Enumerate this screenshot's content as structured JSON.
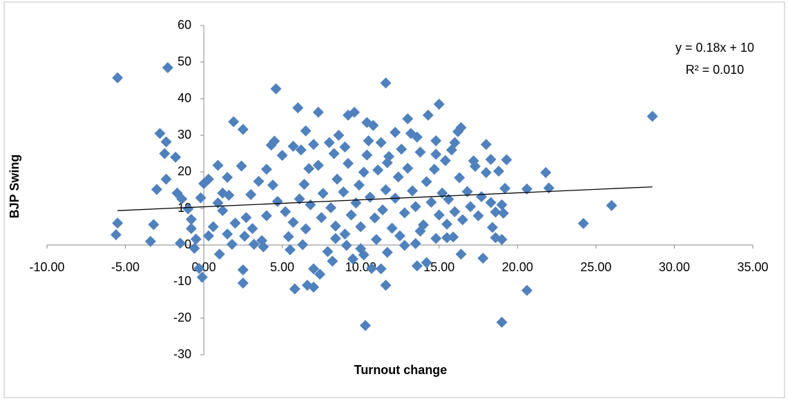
{
  "chart_data": {
    "type": "scatter",
    "x_label": "Turnout change",
    "y_label": "BJP Swing",
    "equation": "y = 0.18x + 10",
    "r_squared": "R² = 0.010",
    "color": "#4f81bd",
    "xlim": [
      -10,
      35
    ],
    "xticks": [
      {
        "value": -10,
        "label": "-10.00"
      },
      {
        "value": -5,
        "label": "-5.00"
      },
      {
        "value": 0,
        "label": "0.00"
      },
      {
        "value": 5,
        "label": "5.00"
      },
      {
        "value": 10,
        "label": "10.00"
      },
      {
        "value": 15,
        "label": "15.00"
      },
      {
        "value": 20,
        "label": "20.00"
      },
      {
        "value": 25,
        "label": "25.00"
      },
      {
        "value": 30,
        "label": "30.00"
      },
      {
        "value": 35,
        "label": "35.00"
      }
    ],
    "ylim": [
      -30,
      60
    ],
    "yticks": [
      -30,
      -20,
      -10,
      0,
      10,
      20,
      30,
      40,
      50,
      60
    ],
    "trendline": {
      "x": [
        -5.5,
        28.6
      ],
      "y": [
        9.4,
        15.9
      ]
    },
    "x": [
      -5.5,
      -2.3,
      4.6,
      11.6,
      15,
      28.6,
      26,
      24.2,
      21.8,
      22,
      20.6,
      20.6,
      19,
      10.3,
      -5.5,
      -5.6,
      -3.4,
      -3.2,
      -3,
      -2.8,
      -2.4,
      -2.5,
      -2.4,
      -1.8,
      -1.7,
      -1.4,
      -1,
      -0.8,
      -0.6,
      -0.3,
      -0.1,
      0.3,
      0.6,
      1,
      0.9,
      1.5,
      1.9,
      2.5,
      2.4,
      2.5,
      2.5,
      3.2,
      3.5,
      4,
      4.3,
      4.5,
      5,
      5.5,
      5.7,
      6,
      6.2,
      6.5,
      5.8,
      6.6,
      7,
      7.3,
      7,
      7.4,
      7,
      8,
      8.6,
      9.2,
      9.6,
      10.4,
      10.8,
      11.3,
      12.2,
      13,
      13.6,
      14.3,
      14.8,
      16.4,
      16.2,
      17.2,
      18,
      18.3,
      19.3,
      19.2,
      19,
      18.4,
      18.6,
      19,
      17.8,
      16.4,
      15.5,
      15.9,
      14.8,
      14.2,
      13.6,
      13.5,
      12.8,
      11.6,
      11.3,
      11.7,
      10.7,
      10.2,
      9.5,
      8.2,
      7.9,
      8.4,
      9.1,
      6.3,
      6.5,
      5.4,
      4,
      3.7,
      2.6,
      2,
      1.8,
      1.2,
      0.9,
      -0.5,
      -0.2,
      0,
      0.3,
      1.2,
      1.6,
      2.7,
      3.1,
      3,
      4.4,
      4.7,
      5.2,
      5.7,
      6.1,
      6.4,
      6.7,
      7.3,
      7.6,
      8.1,
      8.4,
      8.5,
      8.9,
      9.2,
      9.4,
      9.7,
      9.9,
      10.2,
      10.4,
      10.6,
      10.9,
      11.1,
      11.4,
      11.6,
      11.8,
      12,
      12.2,
      12.4,
      12.6,
      12.8,
      13,
      13.3,
      13.5,
      13.8,
      14,
      14.2,
      14.5,
      14.7,
      15,
      15.2,
      15.4,
      15.6,
      15.8,
      16,
      16.3,
      16.5,
      16.8,
      17,
      17.3,
      17.5,
      17.7,
      18,
      18.3,
      18.6,
      18.8,
      19.1,
      12.5,
      11,
      10,
      9,
      7.5,
      6.8,
      13.8,
      15.5,
      10.5,
      9,
      8.3,
      11.7,
      13.2,
      14.8,
      16,
      10,
      -1.5,
      -0.8,
      1.5,
      3.8
    ],
    "values": [
      45.7,
      48.5,
      42.7,
      44.3,
      38.5,
      35.2,
      10.8,
      5.9,
      19.8,
      15.6,
      15.3,
      -12.4,
      -21.1,
      -22,
      6,
      2.8,
      1,
      5.6,
      15.2,
      30.5,
      28.2,
      25,
      18,
      24,
      14.2,
      12.6,
      9.9,
      4.5,
      -0.9,
      -6.4,
      -8.8,
      2.5,
      5,
      -2.5,
      21.8,
      18.5,
      33.7,
      31.6,
      21.6,
      -6.8,
      -10.4,
      0.2,
      17.4,
      20.7,
      27.3,
      28.4,
      24.5,
      -1.3,
      27,
      37.5,
      26,
      31.2,
      -12,
      -11,
      -11.5,
      36.3,
      27.5,
      -8,
      -6.5,
      28,
      30,
      35.5,
      36.3,
      33.5,
      32.7,
      28,
      30.8,
      34.5,
      29.5,
      35.5,
      28.5,
      32.1,
      31,
      23,
      27.5,
      23.4,
      23.3,
      15.5,
      11,
      4.8,
      2,
      1.5,
      -3.6,
      -2.5,
      2,
      2.2,
      1.8,
      -4.8,
      -5.7,
      0.4,
      -0.1,
      -11,
      -6.5,
      -2,
      -6.4,
      -2.7,
      -3.8,
      -4.4,
      -1.8,
      1.8,
      -0.1,
      0.1,
      4.4,
      2.3,
      8,
      1.2,
      2.4,
      6,
      0.2,
      9.4,
      11.5,
      1.6,
      12.9,
      16.8,
      18,
      14.2,
      13.6,
      7.5,
      4.5,
      13.8,
      16.4,
      11.9,
      9.1,
      6.2,
      12.6,
      16.6,
      20.9,
      21.8,
      14.1,
      10.2,
      5.2,
      18,
      14.5,
      22.3,
      8.2,
      11.5,
      16.4,
      19.9,
      24.6,
      13.1,
      7.4,
      20.5,
      9.6,
      15.1,
      24.2,
      4.6,
      12.8,
      18.6,
      26.2,
      8.8,
      21,
      14.8,
      10.5,
      25.4,
      5.5,
      17.3,
      11.7,
      20.7,
      8.2,
      14.2,
      23.1,
      12.5,
      26,
      9.1,
      18.4,
      6.9,
      14.6,
      10.5,
      21.5,
      8,
      13.2,
      19.8,
      11.6,
      9,
      20.2,
      8.7,
      2.5,
      1.5,
      5,
      3,
      7.5,
      11,
      3.8,
      5.7,
      28.5,
      26.8,
      25,
      22.5,
      30.5,
      24.8,
      28,
      -1,
      0.5,
      7,
      3,
      -0.5
    ]
  }
}
